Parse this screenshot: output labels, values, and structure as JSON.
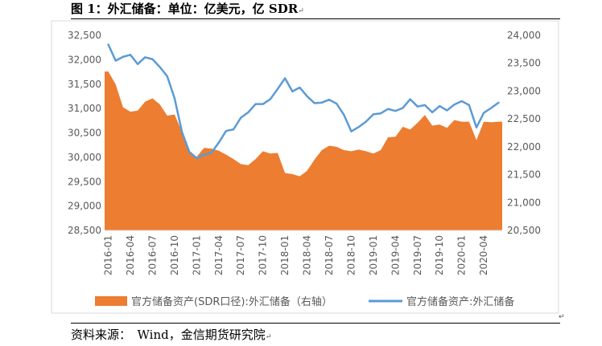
{
  "figure": {
    "title": "图 1：外汇储备：单位：亿美元，亿 SDR",
    "source": "资料来源：　Wind，金信期货研究院"
  },
  "chart_data": {
    "type": "area+line",
    "title": "图 1：外汇储备：单位：亿美元，亿 SDR",
    "x": [
      "2016-01",
      "2016-02",
      "2016-03",
      "2016-04",
      "2016-05",
      "2016-06",
      "2016-07",
      "2016-08",
      "2016-09",
      "2016-10",
      "2016-11",
      "2016-12",
      "2017-01",
      "2017-02",
      "2017-03",
      "2017-04",
      "2017-05",
      "2017-06",
      "2017-07",
      "2017-08",
      "2017-09",
      "2017-10",
      "2017-11",
      "2017-12",
      "2018-01",
      "2018-02",
      "2018-03",
      "2018-04",
      "2018-05",
      "2018-06",
      "2018-07",
      "2018-08",
      "2018-09",
      "2018-10",
      "2018-11",
      "2018-12",
      "2019-01",
      "2019-02",
      "2019-03",
      "2019-04",
      "2019-05",
      "2019-06",
      "2019-07",
      "2019-08",
      "2019-09",
      "2019-10",
      "2019-11",
      "2019-12",
      "2020-01",
      "2020-02",
      "2020-03",
      "2020-04",
      "2020-05",
      "2020-06"
    ],
    "x_tick_labels": [
      "2016-01",
      "2016-04",
      "2016-07",
      "2016-10",
      "2017-01",
      "2017-04",
      "2017-07",
      "2017-10",
      "2018-01",
      "2018-04",
      "2018-07",
      "2018-10",
      "2019-01",
      "2019-04",
      "2019-07",
      "2019-10",
      "2020-01",
      "2020-04"
    ],
    "y_left": {
      "min": 28500,
      "max": 32500,
      "ticks": [
        "28,500",
        "29,000",
        "29,500",
        "30,000",
        "30,500",
        "31,000",
        "31,500",
        "32,000",
        "32,500"
      ]
    },
    "y_right": {
      "min": 20500,
      "max": 24000,
      "ticks": [
        "20,500",
        "21,000",
        "21,500",
        "22,000",
        "22,500",
        "23,000",
        "23,500",
        "24,000"
      ]
    },
    "series": [
      {
        "name": "官方储备资产(SDR口径):外汇储备（右轴）",
        "type": "area",
        "axis": "right",
        "color": "#ED7D31",
        "values": [
          23350,
          23120,
          22710,
          22630,
          22650,
          22810,
          22870,
          22760,
          22560,
          22580,
          22270,
          21930,
          21820,
          21980,
          21970,
          21930,
          21860,
          21780,
          21690,
          21670,
          21780,
          21920,
          21880,
          21890,
          21530,
          21510,
          21470,
          21570,
          21770,
          21940,
          22020,
          22000,
          21940,
          21920,
          21950,
          21920,
          21880,
          21940,
          22170,
          22180,
          22360,
          22310,
          22430,
          22570,
          22380,
          22400,
          22340,
          22480,
          22450,
          22450,
          22120,
          22450,
          22440,
          22450
        ]
      },
      {
        "name": "官方储备资产:外汇储备",
        "type": "line",
        "axis": "left",
        "color": "#5B9BD5",
        "values": [
          32310,
          31980,
          32060,
          32100,
          31910,
          32050,
          32010,
          31850,
          31660,
          31210,
          30520,
          30110,
          29980,
          30050,
          30090,
          30300,
          30540,
          30570,
          30810,
          30920,
          31090,
          31090,
          31190,
          31400,
          31620,
          31350,
          31430,
          31250,
          31110,
          31120,
          31180,
          31100,
          30870,
          30530,
          30620,
          30730,
          30880,
          30900,
          30990,
          30950,
          31010,
          31190,
          31040,
          31070,
          30920,
          31050,
          30960,
          31080,
          31150,
          31070,
          30610,
          30910,
          31010,
          31120
        ]
      }
    ]
  }
}
